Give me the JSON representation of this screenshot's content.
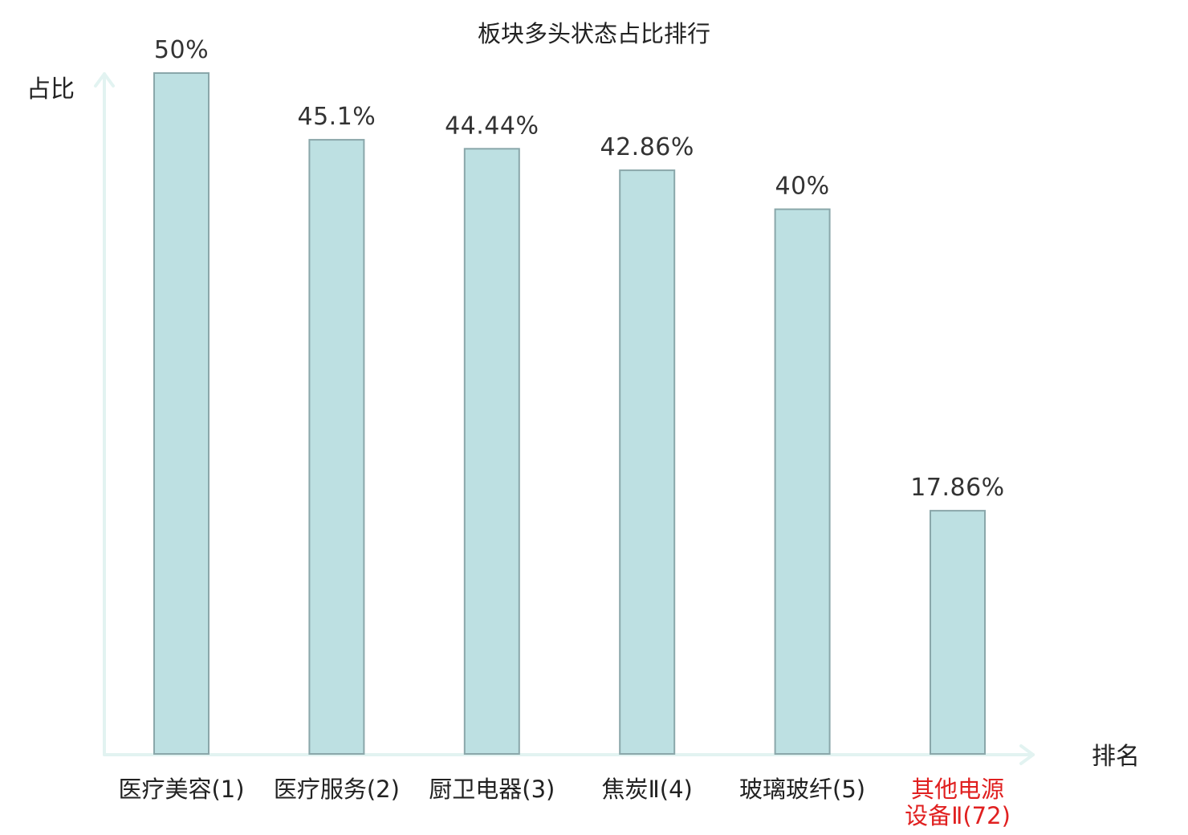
{
  "chart_data": {
    "type": "bar",
    "title": "板块多头状态占比排行",
    "ylabel": "占比",
    "xlabel": "排名",
    "ylim": [
      0,
      50
    ],
    "grid": false,
    "categories": [
      [
        "医疗美容(1)"
      ],
      [
        "医疗服务(2)"
      ],
      [
        "厨卫电器(3)"
      ],
      [
        "焦炭Ⅱ(4)"
      ],
      [
        "玻璃玻纤(5)"
      ],
      [
        "其他电源",
        "设备Ⅱ(72)"
      ]
    ],
    "values": [
      50,
      45.1,
      44.44,
      42.86,
      40,
      17.86
    ],
    "value_labels": [
      "50%",
      "45.1%",
      "44.44%",
      "42.86%",
      "40%",
      "17.86%"
    ],
    "highlight_index": 5
  },
  "colors": {
    "bar_fill": "#bde0e2",
    "bar_stroke": "#8aa7aa",
    "axis": "#e2f3f1",
    "text": "#222222",
    "value_text": "#333333",
    "highlight": "#e02020"
  }
}
